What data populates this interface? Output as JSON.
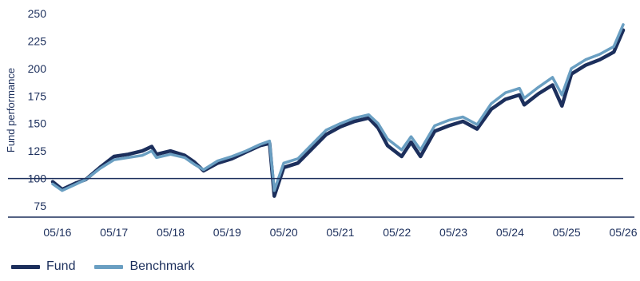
{
  "chart_data": {
    "type": "line",
    "title": "",
    "xlabel": "",
    "ylabel": "Fund performance",
    "ylim": [
      75,
      250
    ],
    "yticks": [
      75,
      100,
      125,
      150,
      175,
      200,
      225,
      250
    ],
    "xticks": [
      "05/16",
      "05/17",
      "05/18",
      "05/19",
      "05/20",
      "05/21",
      "05/22",
      "05/23",
      "05/24",
      "05/25",
      "05/26"
    ],
    "xlim": [
      "2016-04",
      "2026-05"
    ],
    "reference_line": 100,
    "grid": false,
    "legend": "bottom-left",
    "colors": {
      "fund": "#1c2f5c",
      "benchmark": "#6a9fc2",
      "axis": "#1c2f5c"
    },
    "series": [
      {
        "name": "Fund",
        "dates": [
          "2016-04",
          "2016-06",
          "2016-09",
          "2016-11",
          "2017-02",
          "2017-05",
          "2017-08",
          "2017-11",
          "2018-01",
          "2018-02",
          "2018-05",
          "2018-08",
          "2018-10",
          "2018-12",
          "2019-03",
          "2019-06",
          "2019-09",
          "2019-12",
          "2020-02",
          "2020-03",
          "2020-05",
          "2020-08",
          "2020-11",
          "2021-02",
          "2021-05",
          "2021-08",
          "2021-11",
          "2022-01",
          "2022-03",
          "2022-06",
          "2022-08",
          "2022-10",
          "2023-01",
          "2023-04",
          "2023-07",
          "2023-10",
          "2024-01",
          "2024-04",
          "2024-07",
          "2024-08",
          "2024-11",
          "2025-02",
          "2025-04",
          "2025-06",
          "2025-09",
          "2025-12",
          "2026-03",
          "2026-05"
        ],
        "values": [
          97,
          90,
          96,
          99,
          110,
          120,
          122,
          125,
          129,
          122,
          125,
          121,
          115,
          107,
          114,
          118,
          124,
          130,
          132,
          84,
          110,
          114,
          127,
          140,
          147,
          152,
          155,
          146,
          130,
          120,
          133,
          120,
          143,
          148,
          152,
          145,
          163,
          172,
          176,
          167,
          177,
          185,
          166,
          195,
          203,
          208,
          215,
          235
        ]
      },
      {
        "name": "Benchmark",
        "dates": [
          "2016-04",
          "2016-06",
          "2016-09",
          "2016-11",
          "2017-02",
          "2017-05",
          "2017-08",
          "2017-11",
          "2018-01",
          "2018-02",
          "2018-05",
          "2018-08",
          "2018-10",
          "2018-12",
          "2019-03",
          "2019-06",
          "2019-09",
          "2019-12",
          "2020-02",
          "2020-03",
          "2020-05",
          "2020-08",
          "2020-11",
          "2021-02",
          "2021-05",
          "2021-08",
          "2021-11",
          "2022-01",
          "2022-03",
          "2022-06",
          "2022-08",
          "2022-10",
          "2023-01",
          "2023-04",
          "2023-07",
          "2023-10",
          "2024-01",
          "2024-04",
          "2024-07",
          "2024-08",
          "2024-11",
          "2025-02",
          "2025-04",
          "2025-06",
          "2025-09",
          "2025-12",
          "2026-03",
          "2026-05"
        ],
        "values": [
          95,
          89,
          95,
          99,
          109,
          117,
          119,
          121,
          125,
          119,
          122,
          119,
          113,
          108,
          116,
          120,
          125,
          131,
          134,
          89,
          114,
          118,
          131,
          144,
          150,
          155,
          158,
          150,
          136,
          126,
          138,
          126,
          148,
          153,
          156,
          149,
          168,
          178,
          182,
          173,
          183,
          192,
          176,
          200,
          208,
          213,
          220,
          240
        ]
      }
    ]
  }
}
